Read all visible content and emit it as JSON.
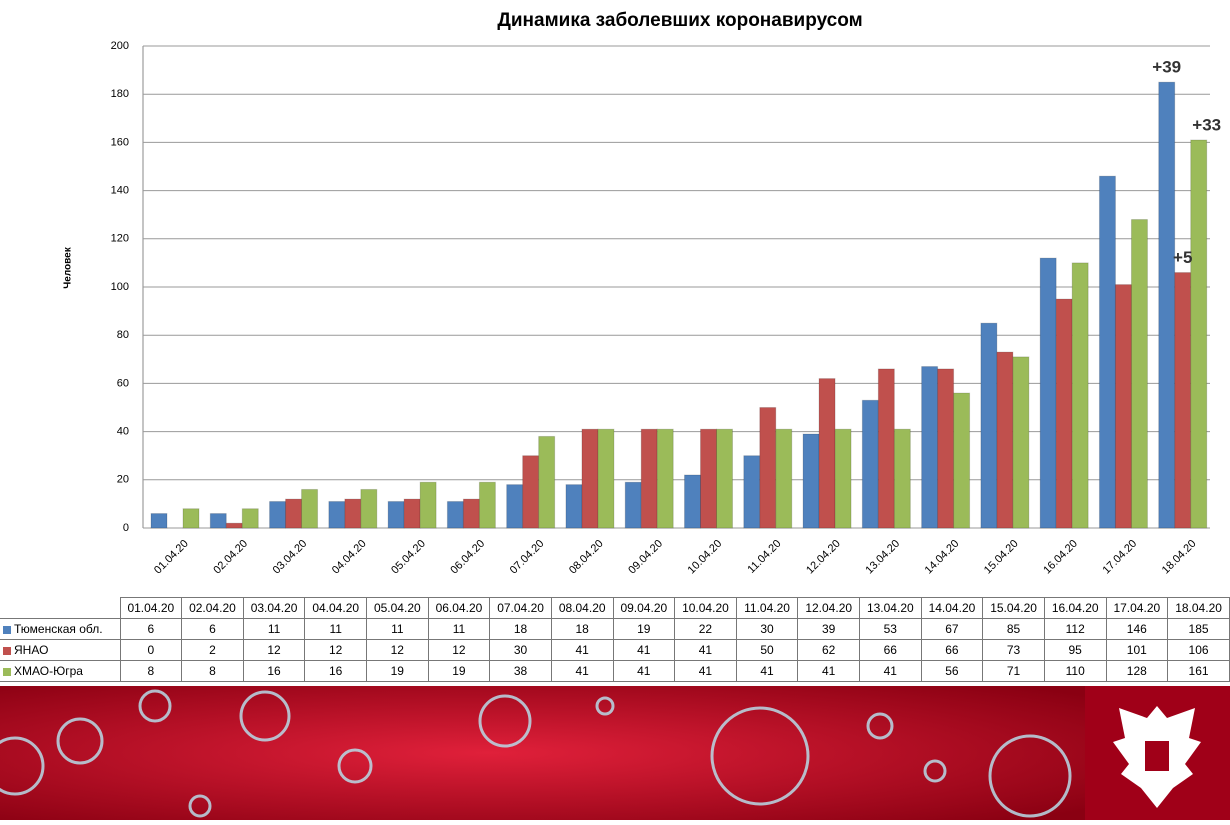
{
  "chart_data": {
    "type": "bar",
    "title": "Динамика заболевших коронавирусом",
    "y_label": "Человек",
    "categories": [
      "01.04.20",
      "02.04.20",
      "03.04.20",
      "04.04.20",
      "05.04.20",
      "06.04.20",
      "07.04.20",
      "08.04.20",
      "09.04.20",
      "10.04.20",
      "11.04.20",
      "12.04.20",
      "13.04.20",
      "14.04.20",
      "15.04.20",
      "16.04.20",
      "17.04.20",
      "18.04.20"
    ],
    "series": [
      {
        "name": "Тюменская обл.",
        "color": "#4f81bd",
        "values": [
          6,
          6,
          11,
          11,
          11,
          11,
          18,
          18,
          19,
          22,
          30,
          39,
          53,
          67,
          85,
          112,
          146,
          185
        ]
      },
      {
        "name": "ЯНАО",
        "color": "#c0504d",
        "values": [
          0,
          2,
          12,
          12,
          12,
          12,
          30,
          41,
          41,
          41,
          50,
          62,
          66,
          66,
          73,
          95,
          101,
          106
        ]
      },
      {
        "name": "ХМАО-Югра",
        "color": "#9bbb59",
        "values": [
          8,
          8,
          16,
          16,
          19,
          19,
          38,
          41,
          41,
          41,
          41,
          41,
          41,
          56,
          71,
          110,
          128,
          161
        ]
      }
    ],
    "annotations": [
      "+39",
      "+33",
      "+5"
    ],
    "ylim": [
      0,
      200
    ],
    "yticks": [
      0,
      20,
      40,
      60,
      80,
      100,
      120,
      140,
      160,
      180,
      200
    ],
    "grid": true
  }
}
